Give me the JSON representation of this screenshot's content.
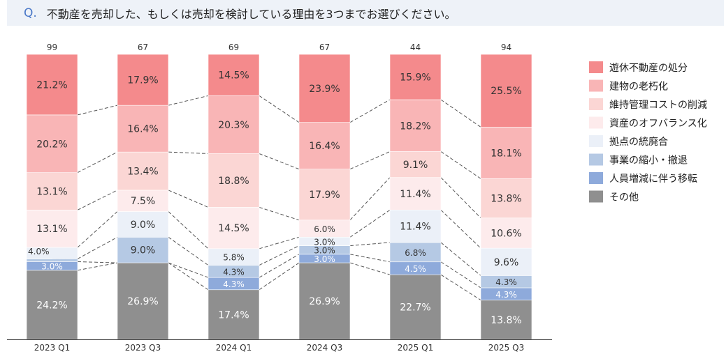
{
  "question": {
    "prefix": "Q.",
    "text": "不動産を売却した、もしくは売却を検討している理由を3つまでお選びください。"
  },
  "chart_data": {
    "type": "bar",
    "stacked": true,
    "ylim": [
      0,
      100
    ],
    "grid": false,
    "legend": "right",
    "categories": [
      "2023 Q1",
      "2023 Q3",
      "2024 Q1",
      "2024 Q3",
      "2025 Q1",
      "2025 Q3"
    ],
    "n": [
      "99",
      "67",
      "69",
      "67",
      "44",
      "94"
    ],
    "series": [
      {
        "name": "遊休不動産の処分",
        "color": "#f48a8c",
        "values": [
          21.2,
          17.9,
          14.5,
          23.9,
          15.9,
          25.5
        ]
      },
      {
        "name": "建物の老朽化",
        "color": "#f9b5b6",
        "values": [
          20.2,
          16.4,
          20.3,
          16.4,
          18.2,
          18.1
        ]
      },
      {
        "name": "維持管理コストの削減",
        "color": "#fbd6d4",
        "values": [
          13.1,
          13.4,
          18.8,
          17.9,
          9.1,
          13.8
        ]
      },
      {
        "name": "資産のオフバランス化",
        "color": "#fdebec",
        "values": [
          13.1,
          7.5,
          14.5,
          6.0,
          11.4,
          10.6
        ]
      },
      {
        "name": "拠点の統廃合",
        "color": "#ebf0f8",
        "values": [
          4.0,
          9.0,
          5.8,
          3.0,
          11.4,
          9.6
        ]
      },
      {
        "name": "事業の縮小・撤退",
        "color": "#b5c9e4",
        "values": [
          1.0,
          9.0,
          4.3,
          3.0,
          6.8,
          4.3
        ]
      },
      {
        "name": "人員増減に伴う移転",
        "color": "#8eaadb",
        "values": [
          3.0,
          0,
          4.3,
          3.0,
          4.5,
          4.3
        ]
      },
      {
        "name": "その他",
        "color": "#8f8f8f",
        "values": [
          24.2,
          26.9,
          17.4,
          26.9,
          22.7,
          13.8
        ]
      }
    ]
  }
}
